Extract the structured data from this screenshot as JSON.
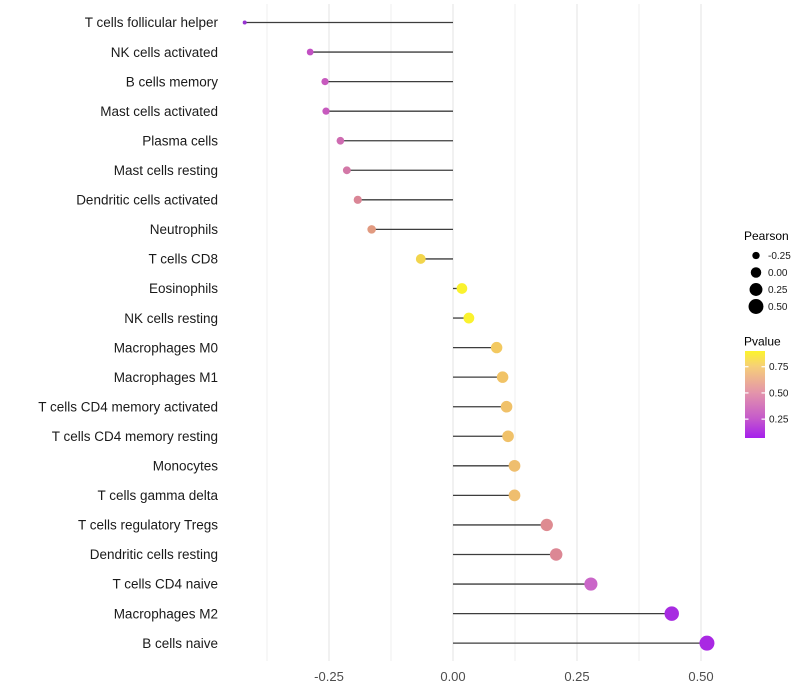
{
  "chart_data": {
    "type": "scatter",
    "variant": "horizontal-lollipop",
    "title": "",
    "xlabel": "",
    "ylabel": "",
    "categories": [
      "T cells follicular helper",
      "NK cells activated",
      "B cells memory",
      "Mast cells activated",
      "Plasma cells",
      "Mast cells resting",
      "Dendritic cells activated",
      "Neutrophils",
      "T cells CD8",
      "Eosinophils",
      "NK cells resting",
      "Macrophages M0",
      "Macrophages M1",
      "T cells CD4 memory activated",
      "T cells CD4 memory resting",
      "Monocytes",
      "T cells gamma delta",
      "T cells regulatory  Tregs",
      "Dendritic cells resting",
      "T cells CD4 naive",
      "Macrophages M2",
      "B cells naive"
    ],
    "series": [
      {
        "name": "Pearson",
        "values": [
          -0.42,
          -0.288,
          -0.258,
          -0.256,
          -0.227,
          -0.214,
          -0.192,
          -0.164,
          -0.065,
          0.018,
          0.032,
          0.088,
          0.1,
          0.108,
          0.111,
          0.124,
          0.124,
          0.189,
          0.208,
          0.278,
          0.441,
          0.512
        ]
      }
    ],
    "pvalues_estimated": [
      0.1,
      0.24,
      0.27,
      0.27,
      0.32,
      0.36,
      0.43,
      0.52,
      0.8,
      0.9,
      0.9,
      0.74,
      0.72,
      0.71,
      0.71,
      0.69,
      0.69,
      0.47,
      0.45,
      0.29,
      0.11,
      0.1
    ],
    "point_colors_hex": [
      "#9733D1",
      "#C250C3",
      "#C75ABE",
      "#C75ABE",
      "#CE6BB1",
      "#D378A7",
      "#DA8696",
      "#E19A80",
      "#F2D54C",
      "#FAF22E",
      "#FAF22E",
      "#F3C960",
      "#F1C366",
      "#F0C169",
      "#F0C169",
      "#EFBE6E",
      "#EFBE6E",
      "#DE8B91",
      "#DC8794",
      "#CA66C8",
      "#A72BE1",
      "#A928E3"
    ],
    "x_tick_labels": [
      "-0.25",
      "0.00",
      "0.25",
      "0.50"
    ],
    "x_tick_values": [
      -0.25,
      0.0,
      0.25,
      0.5
    ],
    "x_minor_gridline_values": [
      -0.375,
      -0.125,
      0.125,
      0.375
    ],
    "xlim": [
      -0.467,
      0.557
    ],
    "grid": "vertical major and minor gridlines only, no axis lines, white background",
    "legend_position": "right",
    "size_legend": {
      "title": "Pearson",
      "entries": [
        {
          "label": "-0.25",
          "value": -0.25
        },
        {
          "label": "0.00",
          "value": 0.0
        },
        {
          "label": "0.25",
          "value": 0.25
        },
        {
          "label": "0.50",
          "value": 0.5
        }
      ],
      "dot_color": "#000000"
    },
    "color_legend": {
      "title": "Pvalue",
      "tick_labels": [
        "0.75",
        "0.50",
        "0.25"
      ],
      "tick_values": [
        0.75,
        0.5,
        0.25
      ],
      "value_range_bottom_to_top": [
        0.07,
        0.9
      ],
      "gradient_stops_top_to_bottom": [
        {
          "offset": 0.0,
          "color": "#FCF42C"
        },
        {
          "offset": 0.176,
          "color": "#F6CF78"
        },
        {
          "offset": 0.475,
          "color": "#E495AA"
        },
        {
          "offset": 0.777,
          "color": "#C55ACB"
        },
        {
          "offset": 1.0,
          "color": "#A51FEC"
        }
      ]
    },
    "colors": {
      "background": "#FFFFFF",
      "stick": "#3D3D3D",
      "grid_major": "#E3E3E3",
      "grid_minor": "#EFEFEF",
      "axis_text": "#4D4D4D",
      "category_text": "#1A1A1A"
    }
  }
}
